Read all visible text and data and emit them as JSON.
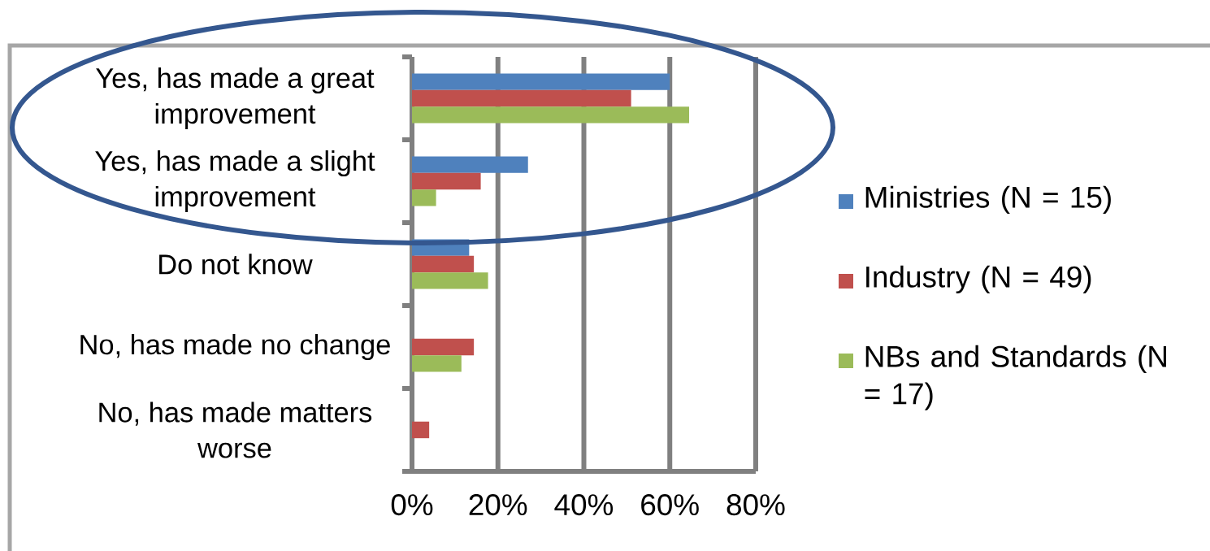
{
  "chart_data": {
    "type": "bar",
    "orientation": "horizontal",
    "categories": [
      "Yes, has made a great improvement",
      "Yes, has made a slight improvement",
      "Do not know",
      "No, has made no change",
      "No, has made matters worse"
    ],
    "series": [
      {
        "name": "Ministries (N = 15)",
        "color": "#4f81bd",
        "values": [
          60,
          27,
          13.3,
          0,
          0
        ]
      },
      {
        "name": "Industry (N = 49)",
        "color": "#c0504d",
        "values": [
          51,
          16,
          14.4,
          14.4,
          4
        ]
      },
      {
        "name": "NBs and Standards (N = 17)",
        "color": "#9bbb59",
        "values": [
          64.5,
          5.6,
          17.7,
          11.5,
          0
        ]
      }
    ],
    "xlim": [
      0,
      80
    ],
    "xticks": [
      {
        "value": 0,
        "label": "0%"
      },
      {
        "value": 20,
        "label": "20%"
      },
      {
        "value": 40,
        "label": "40%"
      },
      {
        "value": 60,
        "label": "60%"
      },
      {
        "value": 80,
        "label": "80%"
      }
    ],
    "grid": "x",
    "legend": "right"
  }
}
